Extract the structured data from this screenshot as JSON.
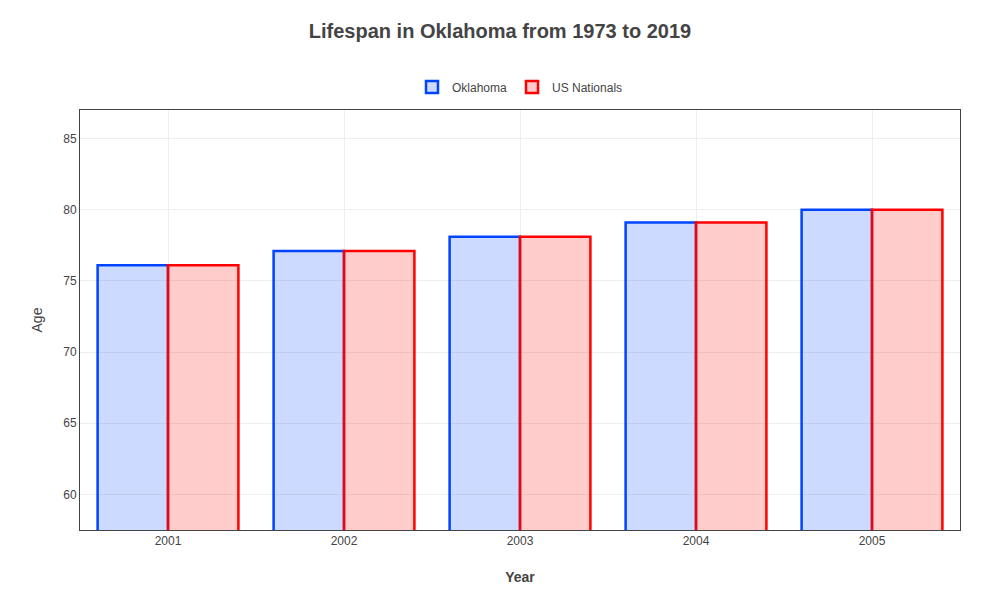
{
  "chart_data": {
    "type": "bar",
    "title": "Lifespan in Oklahoma from 1973 to 2019",
    "x_label": "Year",
    "y_label": "Age",
    "categories": [
      "2001",
      "2002",
      "2003",
      "2004",
      "2005"
    ],
    "series": [
      {
        "name": "Oklahoma",
        "color": "#0044ff",
        "values": [
          76.1,
          77.1,
          78.1,
          79.1,
          80.0
        ]
      },
      {
        "name": "US Nationals",
        "color": "#ff0000",
        "values": [
          76.1,
          77.1,
          78.1,
          79.1,
          80.0
        ]
      }
    ],
    "ylim": [
      57.5,
      87
    ],
    "yticks": [
      60,
      65,
      70,
      75,
      80,
      85
    ],
    "grid": true,
    "legend": "upper center"
  }
}
